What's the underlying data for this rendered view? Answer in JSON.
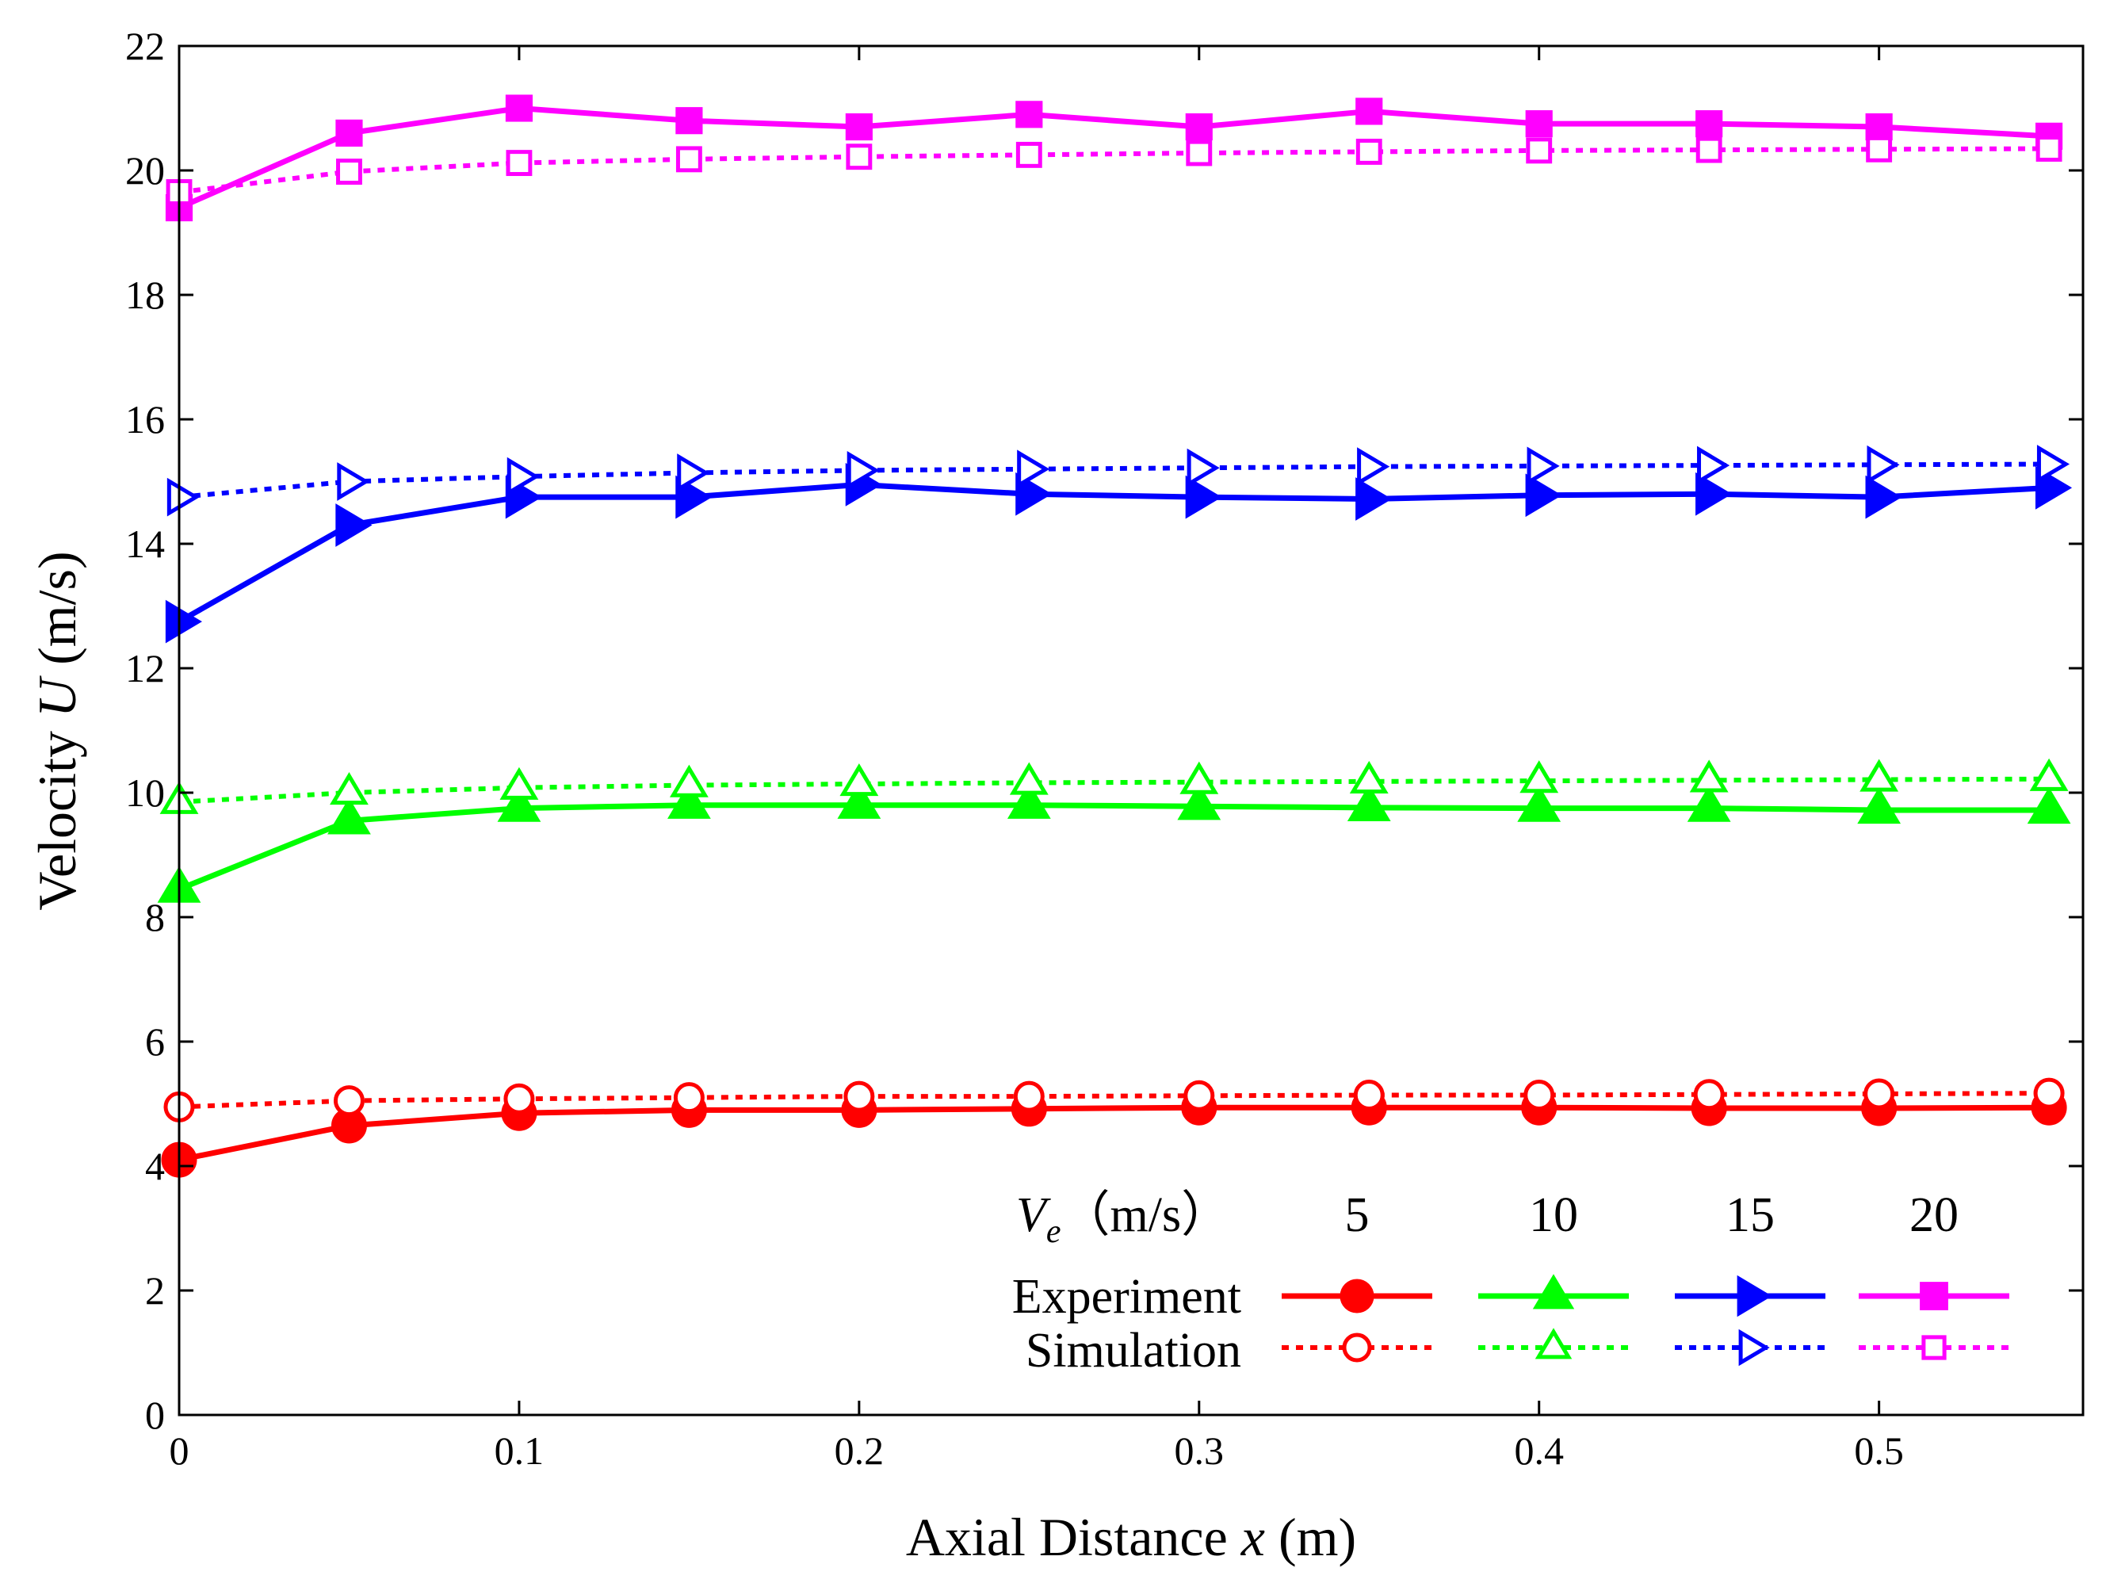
{
  "chart_data": {
    "type": "line",
    "title": "",
    "xlabel": "Axial Distance x (m)",
    "ylabel": "Velocity U (m/s)",
    "xlabel_parts": {
      "prefix": "Axial Distance ",
      "var": "x",
      "suffix": " (m)"
    },
    "ylabel_parts": {
      "prefix": "Velocity ",
      "var": "U",
      "suffix": " (m/s)"
    },
    "xlim": [
      0,
      0.56
    ],
    "ylim": [
      0,
      22
    ],
    "xticks": [
      0,
      0.1,
      0.2,
      0.3,
      0.4,
      0.5
    ],
    "xtick_labels": [
      "0",
      "0.1",
      "0.2",
      "0.3",
      "0.4",
      "0.5"
    ],
    "yticks": [
      0,
      2,
      4,
      6,
      8,
      10,
      12,
      14,
      16,
      18,
      20,
      22
    ],
    "ytick_labels": [
      "0",
      "2",
      "4",
      "6",
      "8",
      "10",
      "12",
      "14",
      "16",
      "18",
      "20",
      "22"
    ],
    "grid": false,
    "x": [
      0,
      0.05,
      0.1,
      0.15,
      0.2,
      0.25,
      0.3,
      0.35,
      0.4,
      0.45,
      0.5,
      0.55
    ],
    "series": [
      {
        "name": "Experiment, Ve = 5 m/s",
        "kind": "experiment",
        "ve": "5",
        "color": "#ff0000",
        "marker": "circle",
        "values": [
          4.1,
          4.65,
          4.85,
          4.9,
          4.9,
          4.92,
          4.94,
          4.94,
          4.94,
          4.93,
          4.93,
          4.94
        ]
      },
      {
        "name": "Simulation, Ve = 5 m/s",
        "kind": "simulation",
        "ve": "5",
        "color": "#ff0000",
        "marker": "circle",
        "values": [
          4.95,
          5.05,
          5.08,
          5.1,
          5.12,
          5.12,
          5.13,
          5.14,
          5.14,
          5.15,
          5.16,
          5.17
        ]
      },
      {
        "name": "Experiment, Ve = 10 m/s",
        "kind": "experiment",
        "ve": "10",
        "color": "#00ff00",
        "marker": "triangle-up",
        "values": [
          8.45,
          9.55,
          9.75,
          9.8,
          9.8,
          9.8,
          9.78,
          9.76,
          9.75,
          9.75,
          9.72,
          9.72
        ]
      },
      {
        "name": "Simulation, Ve = 10 m/s",
        "kind": "simulation",
        "ve": "10",
        "color": "#00ff00",
        "marker": "triangle-up",
        "values": [
          9.85,
          10.0,
          10.08,
          10.12,
          10.14,
          10.16,
          10.17,
          10.18,
          10.19,
          10.2,
          10.21,
          10.22
        ]
      },
      {
        "name": "Experiment, Ve = 15 m/s",
        "kind": "experiment",
        "ve": "15",
        "color": "#0000ff",
        "marker": "triangle-right",
        "values": [
          12.75,
          14.3,
          14.75,
          14.75,
          14.95,
          14.8,
          14.75,
          14.72,
          14.78,
          14.8,
          14.75,
          14.9
        ]
      },
      {
        "name": "Simulation, Ve = 15 m/s",
        "kind": "simulation",
        "ve": "15",
        "color": "#0000ff",
        "marker": "triangle-right",
        "values": [
          14.75,
          15.0,
          15.08,
          15.14,
          15.18,
          15.2,
          15.22,
          15.24,
          15.25,
          15.26,
          15.27,
          15.28
        ]
      },
      {
        "name": "Experiment, Ve = 20 m/s",
        "kind": "experiment",
        "ve": "20",
        "color": "#ff00ff",
        "marker": "square",
        "values": [
          19.4,
          20.6,
          21.0,
          20.8,
          20.7,
          20.9,
          20.7,
          20.95,
          20.75,
          20.75,
          20.7,
          20.55
        ]
      },
      {
        "name": "Simulation, Ve = 20 m/s",
        "kind": "simulation",
        "ve": "20",
        "color": "#ff00ff",
        "marker": "square",
        "values": [
          19.65,
          19.98,
          20.12,
          20.18,
          20.22,
          20.25,
          20.28,
          20.3,
          20.32,
          20.33,
          20.34,
          20.35
        ]
      }
    ],
    "legend": {
      "placement": "bottom-right",
      "header_symbol": "V",
      "header_subscript": "e",
      "header_unit": "（m/s）",
      "columns": [
        "5",
        "10",
        "15",
        "20"
      ],
      "rows": [
        "Experiment",
        "Simulation"
      ]
    }
  }
}
